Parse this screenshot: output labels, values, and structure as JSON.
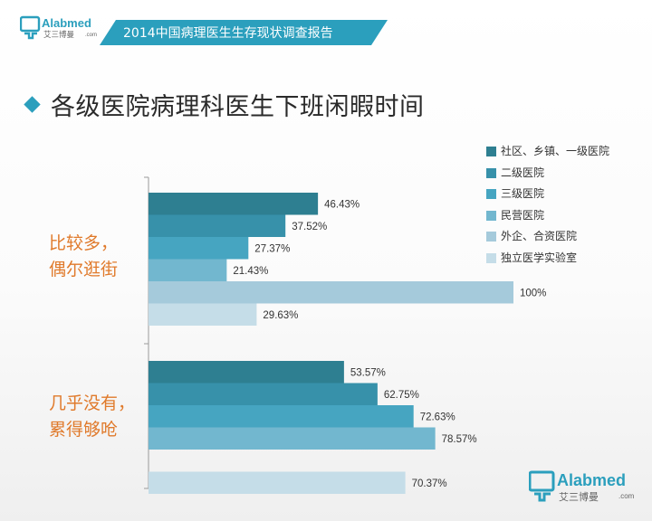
{
  "header": {
    "brand": "Alabmed",
    "brand_sub": ".com",
    "brand_cn": "艾三博曼",
    "report_title": "2014中国病理医生生存现状调查报告"
  },
  "title": "各级医院病理科医生下班闲暇时间",
  "footer": {
    "brand": "Alabmed",
    "brand_sub": ".com",
    "brand_cn": "艾三博曼"
  },
  "chart_data": {
    "type": "bar",
    "orientation": "horizontal",
    "title": "各级医院病理科医生下班闲暇时间",
    "categories": [
      {
        "lines": [
          "比较多，",
          "偶尔逛街"
        ]
      },
      {
        "lines": [
          "几乎没有，",
          "累得够呛"
        ]
      }
    ],
    "series": [
      {
        "name": "社区、乡镇、一级医院",
        "color": "#2e7f91",
        "values": [
          46.43,
          53.57
        ]
      },
      {
        "name": "二级医院",
        "color": "#3791aa",
        "values": [
          37.52,
          62.75
        ]
      },
      {
        "name": "三级医院",
        "color": "#46a5c1",
        "values": [
          27.37,
          72.63
        ]
      },
      {
        "name": "民营医院",
        "color": "#72b7cf",
        "values": [
          21.43,
          78.57
        ]
      },
      {
        "name": "外企、合资医院",
        "color": "#a5cadb",
        "values": [
          100,
          0
        ]
      },
      {
        "name": "独立医学实验室",
        "color": "#c5dde8",
        "values": [
          29.63,
          70.37
        ]
      }
    ],
    "value_labels": [
      [
        "46.43%",
        "37.52%",
        "27.37%",
        "21.43%",
        "100%",
        "29.63%"
      ],
      [
        "53.57%",
        "62.75%",
        "72.63%",
        "78.57%",
        "",
        "70.37%"
      ]
    ],
    "xlim": [
      0,
      100
    ],
    "unit": "%",
    "legend_position": "top-right",
    "grid": false
  }
}
